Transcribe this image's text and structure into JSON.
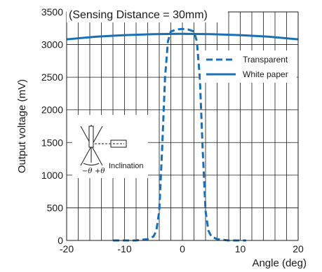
{
  "chart_data": {
    "type": "line",
    "annotation": "(Sensing Distance = 30mm)",
    "xlabel": "Angle (deg)",
    "ylabel": "Output voltage (mV)",
    "xlim": [
      -20,
      20
    ],
    "ylim": [
      0,
      3500
    ],
    "x_ticks": [
      "-20",
      "-10",
      "0",
      "10",
      "20"
    ],
    "y_ticks": [
      "0",
      "500",
      "1000",
      "1500",
      "2000",
      "2500",
      "3000",
      "3500"
    ],
    "grid": "on",
    "legend_position": "upper-right",
    "series": [
      {
        "name": "Transparent",
        "style": "dashed",
        "color": "#1a6fb5",
        "x": [
          -12,
          -8,
          -6,
          -5,
          -4.5,
          -4,
          -3.5,
          -3,
          -2.5,
          -2,
          -1,
          0,
          1,
          2,
          2.5,
          3,
          3.5,
          4,
          4.5,
          5,
          6,
          8,
          11
        ],
        "y": [
          0,
          0,
          20,
          60,
          150,
          450,
          1400,
          2500,
          3050,
          3200,
          3230,
          3240,
          3230,
          3200,
          3050,
          2500,
          1400,
          450,
          150,
          60,
          20,
          0,
          0
        ]
      },
      {
        "name": "White paper",
        "style": "solid",
        "color": "#1a6fb5",
        "x": [
          -20,
          -15,
          -10,
          -5,
          0,
          5,
          10,
          15,
          20
        ],
        "y": [
          3080,
          3120,
          3145,
          3160,
          3165,
          3160,
          3145,
          3120,
          3080
        ]
      }
    ]
  },
  "inset": {
    "label": "Inclination",
    "minus_theta": "−θ",
    "plus_theta": "+θ"
  }
}
